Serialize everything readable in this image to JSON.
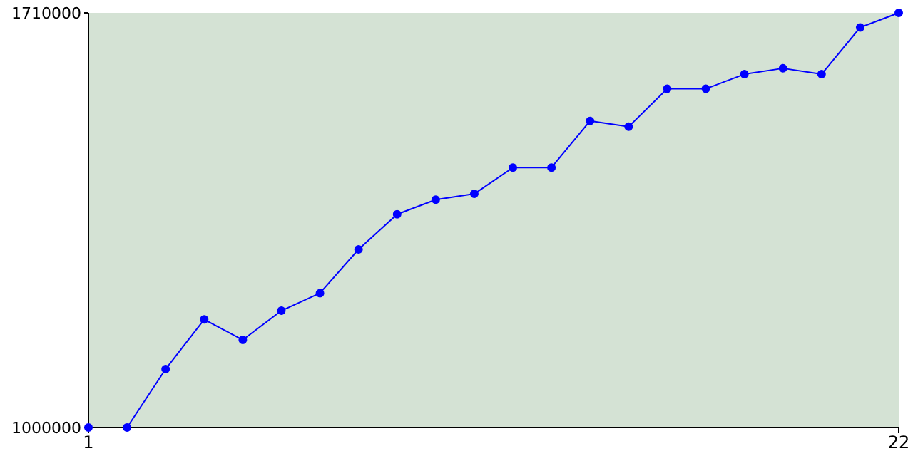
{
  "chart_data": {
    "type": "line",
    "x": [
      1,
      2,
      3,
      4,
      5,
      6,
      7,
      8,
      9,
      10,
      11,
      12,
      13,
      14,
      15,
      16,
      17,
      18,
      19,
      20,
      21,
      22
    ],
    "series": [
      {
        "color": "#0000ff",
        "values": [
          1000000,
          1000000,
          1100000,
          1185000,
          1150000,
          1200000,
          1230000,
          1305000,
          1365000,
          1390000,
          1400000,
          1445000,
          1445000,
          1525000,
          1515000,
          1580000,
          1580000,
          1605000,
          1615000,
          1605000,
          1685000,
          1710000
        ]
      }
    ],
    "xlim": [
      1,
      22
    ],
    "xticks": [
      1,
      22
    ],
    "ylim": [
      1000000,
      1710000
    ],
    "yticks": [
      1000000,
      1710000
    ],
    "marker": "circle",
    "grid": false,
    "legend": false
  }
}
